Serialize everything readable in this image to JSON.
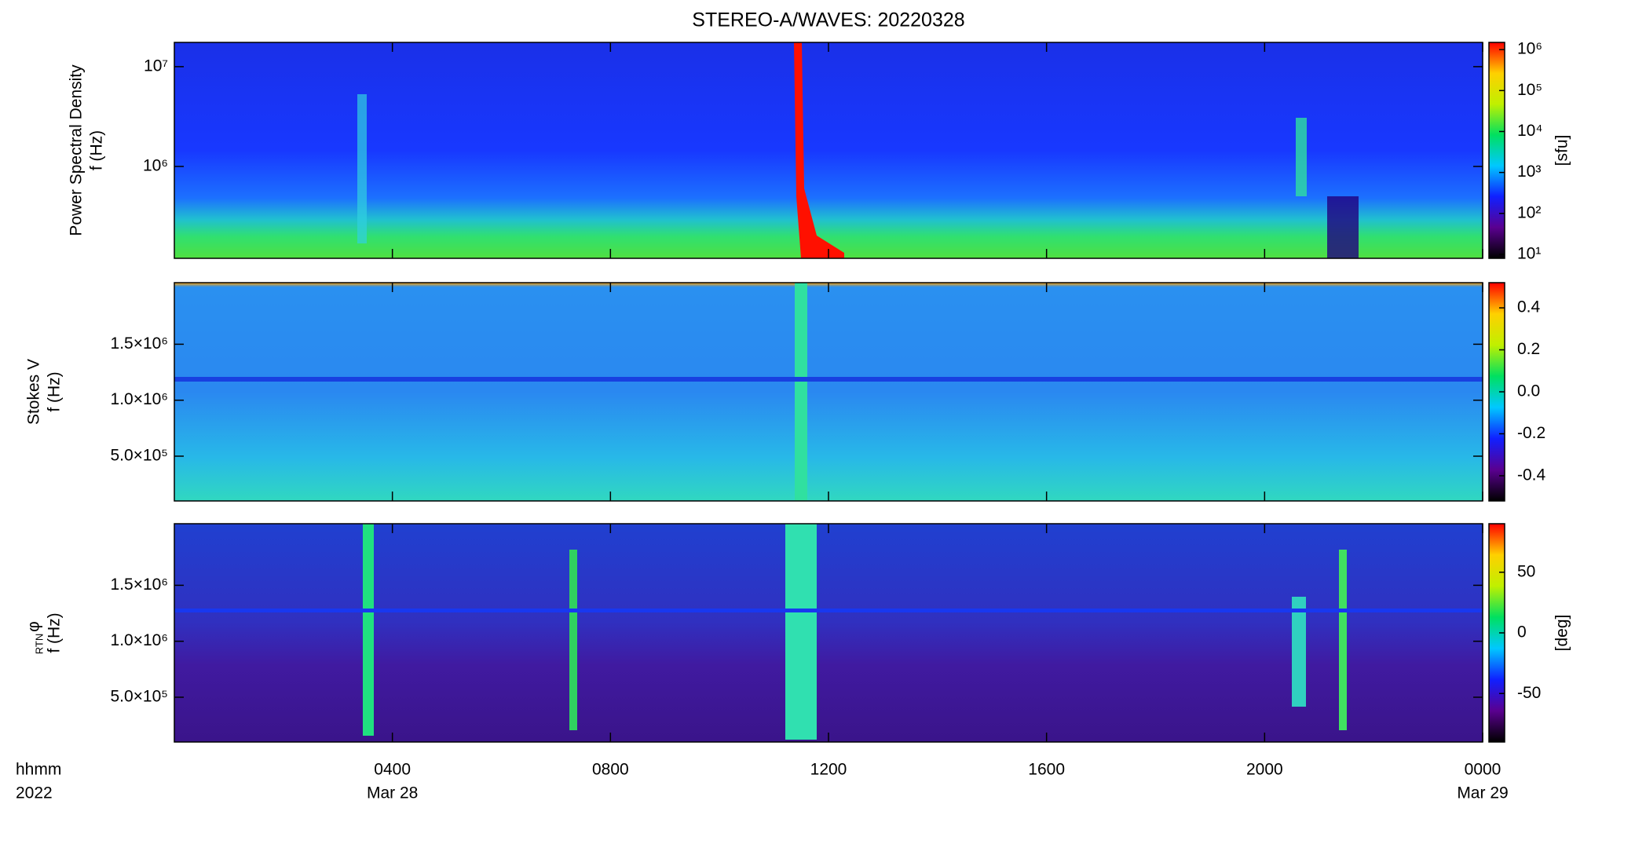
{
  "chart_data": [
    {
      "type": "spectrogram",
      "title": "STEREO-A/WAVES: 20220328",
      "ylabel": [
        "Power Spectral Density",
        "f (Hz)"
      ],
      "ylog": true,
      "ylim": [
        120000,
        17500000
      ],
      "yticks": [
        {
          "value": 1000000,
          "label": "10⁶"
        },
        {
          "value": 10000000,
          "label": "10⁷"
        }
      ],
      "xlim": [
        0,
        24
      ],
      "xticks": [
        4,
        8,
        12,
        16,
        20,
        24
      ],
      "colorbar": {
        "log": true,
        "lim": [
          8,
          1500000
        ],
        "ticks": [
          {
            "value": 10,
            "label": "10¹"
          },
          {
            "value": 100,
            "label": "10²"
          },
          {
            "value": 1000,
            "label": "10³"
          },
          {
            "value": 10000,
            "label": "10⁴"
          },
          {
            "value": 100000,
            "label": "10⁵"
          },
          {
            "value": 1000000,
            "label": "10⁶"
          }
        ],
        "label": "[sfu]",
        "colormap": [
          "#000000",
          "#5a0090",
          "#1020ff",
          "#00c8ff",
          "#00e060",
          "#c0f000",
          "#ffd000",
          "#ff0000"
        ]
      }
    },
    {
      "type": "spectrogram",
      "ylabel": [
        "Stokes V",
        "f (Hz)"
      ],
      "ylog": false,
      "ylim": [
        100000,
        2050000
      ],
      "yticks": [
        {
          "value": 500000,
          "label": "5.0×10⁵"
        },
        {
          "value": 1000000,
          "label": "1.0×10⁶"
        },
        {
          "value": 1500000,
          "label": "1.5×10⁶"
        }
      ],
      "xlim": [
        0,
        24
      ],
      "xticks": [
        4,
        8,
        12,
        16,
        20,
        24
      ],
      "colorbar": {
        "log": false,
        "lim": [
          -0.52,
          0.52
        ],
        "ticks": [
          -0.4,
          -0.2,
          {
            "value": 0,
            "label": "0.0"
          },
          0.2,
          0.4
        ],
        "colormap": [
          "#000000",
          "#5a0090",
          "#1020ff",
          "#00c8ff",
          "#00e060",
          "#c0f000",
          "#ffd000",
          "#ff0000"
        ]
      }
    },
    {
      "type": "spectrogram",
      "ylabel": [
        "φ",
        "f (Hz)"
      ],
      "ylabel_sub": "RTN",
      "ylog": false,
      "ylim": [
        100000,
        2050000
      ],
      "yticks": [
        {
          "value": 500000,
          "label": "5.0×10⁵"
        },
        {
          "value": 1000000,
          "label": "1.0×10⁶"
        },
        {
          "value": 1500000,
          "label": "1.5×10⁶"
        }
      ],
      "xlim": [
        0,
        24
      ],
      "xticks": [
        {
          "value": 4,
          "label": "0400"
        },
        {
          "value": 8,
          "label": "0800"
        },
        {
          "value": 12,
          "label": "1200"
        },
        {
          "value": 16,
          "label": "1600"
        },
        {
          "value": 20,
          "label": "2000"
        },
        {
          "value": 24,
          "label": "0000"
        }
      ],
      "xlabel": [
        "hhmm",
        "2022"
      ],
      "date_labels": [
        {
          "value": 4,
          "label": "Mar 28"
        },
        {
          "value": 24,
          "label": "Mar 29"
        }
      ],
      "colorbar": {
        "log": false,
        "lim": [
          -90,
          90
        ],
        "ticks": [
          -50,
          0,
          50
        ],
        "label": "[deg]",
        "colormap": [
          "#000000",
          "#5a0090",
          "#1020ff",
          "#00c8ff",
          "#00e060",
          "#c0f000",
          "#ffd000",
          "#ff0000"
        ]
      }
    }
  ]
}
